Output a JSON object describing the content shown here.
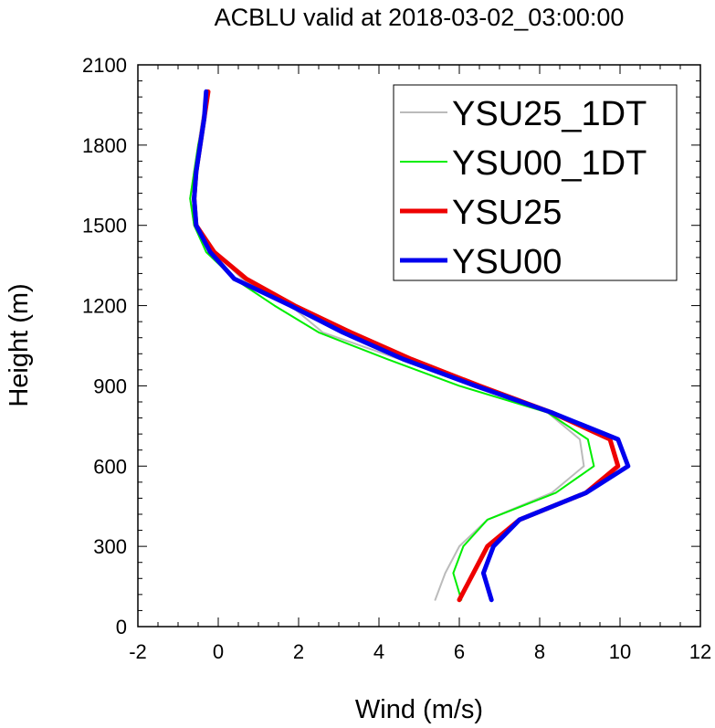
{
  "chart_data": {
    "type": "line",
    "title": "ACBLU valid at 2018-03-02_03:00:00",
    "xlabel": "Wind (m/s)",
    "ylabel": "Height (m)",
    "xlim": [
      -2,
      12
    ],
    "ylim": [
      0,
      2100
    ],
    "xticks": [
      -2,
      0,
      2,
      4,
      6,
      8,
      10,
      12
    ],
    "yticks": [
      0,
      300,
      600,
      900,
      1200,
      1500,
      1800,
      2100
    ],
    "xtick_labels": [
      "-2",
      "0",
      "2",
      "4",
      "6",
      "8",
      "10",
      "12"
    ],
    "ytick_labels": [
      "0",
      "300",
      "600",
      "900",
      "1200",
      "1500",
      "1800",
      "2100"
    ],
    "legend_position": "top-right",
    "grid": false,
    "series": [
      {
        "name": "YSU25_1DT",
        "color": "#bbbbbb",
        "width": 2,
        "points": [
          [
            5.4,
            100
          ],
          [
            5.65,
            200
          ],
          [
            6.0,
            300
          ],
          [
            6.7,
            400
          ],
          [
            8.3,
            500
          ],
          [
            9.1,
            600
          ],
          [
            9.0,
            700
          ],
          [
            8.2,
            800
          ],
          [
            6.3,
            900
          ],
          [
            4.5,
            1000
          ],
          [
            2.6,
            1100
          ],
          [
            1.8,
            1200
          ],
          [
            0.6,
            1300
          ],
          [
            -0.1,
            1400
          ],
          [
            -0.6,
            1500
          ],
          [
            -0.7,
            1600
          ],
          [
            -0.6,
            1700
          ],
          [
            -0.5,
            1800
          ],
          [
            -0.4,
            1900
          ],
          [
            -0.25,
            2000
          ]
        ]
      },
      {
        "name": "YSU00_1DT",
        "color": "#00ee00",
        "width": 2,
        "points": [
          [
            6.05,
            100
          ],
          [
            5.85,
            200
          ],
          [
            6.1,
            300
          ],
          [
            6.7,
            400
          ],
          [
            8.4,
            500
          ],
          [
            9.35,
            600
          ],
          [
            9.2,
            700
          ],
          [
            8.2,
            800
          ],
          [
            6.0,
            900
          ],
          [
            4.2,
            1000
          ],
          [
            2.5,
            1100
          ],
          [
            1.4,
            1200
          ],
          [
            0.4,
            1300
          ],
          [
            -0.3,
            1400
          ],
          [
            -0.6,
            1500
          ],
          [
            -0.7,
            1600
          ],
          [
            -0.6,
            1700
          ],
          [
            -0.5,
            1800
          ],
          [
            -0.35,
            1900
          ],
          [
            -0.25,
            2000
          ]
        ]
      },
      {
        "name": "YSU25",
        "color": "#ee0000",
        "width": 5,
        "points": [
          [
            6.0,
            100
          ],
          [
            6.35,
            200
          ],
          [
            6.7,
            300
          ],
          [
            7.5,
            400
          ],
          [
            9.15,
            500
          ],
          [
            9.95,
            600
          ],
          [
            9.75,
            700
          ],
          [
            8.3,
            800
          ],
          [
            6.5,
            900
          ],
          [
            4.8,
            1000
          ],
          [
            3.3,
            1100
          ],
          [
            1.9,
            1200
          ],
          [
            0.7,
            1300
          ],
          [
            -0.1,
            1400
          ],
          [
            -0.55,
            1500
          ],
          [
            -0.6,
            1600
          ],
          [
            -0.55,
            1700
          ],
          [
            -0.45,
            1800
          ],
          [
            -0.35,
            1900
          ],
          [
            -0.25,
            2000
          ]
        ]
      },
      {
        "name": "YSU00",
        "color": "#0000ee",
        "width": 5,
        "points": [
          [
            6.8,
            100
          ],
          [
            6.6,
            200
          ],
          [
            6.85,
            300
          ],
          [
            7.5,
            400
          ],
          [
            9.15,
            500
          ],
          [
            10.2,
            600
          ],
          [
            9.95,
            700
          ],
          [
            8.3,
            800
          ],
          [
            6.4,
            900
          ],
          [
            4.6,
            1000
          ],
          [
            3.1,
            1100
          ],
          [
            1.8,
            1200
          ],
          [
            0.4,
            1300
          ],
          [
            -0.2,
            1400
          ],
          [
            -0.55,
            1500
          ],
          [
            -0.6,
            1600
          ],
          [
            -0.55,
            1700
          ],
          [
            -0.45,
            1800
          ],
          [
            -0.35,
            1900
          ],
          [
            -0.3,
            2000
          ]
        ]
      }
    ]
  }
}
